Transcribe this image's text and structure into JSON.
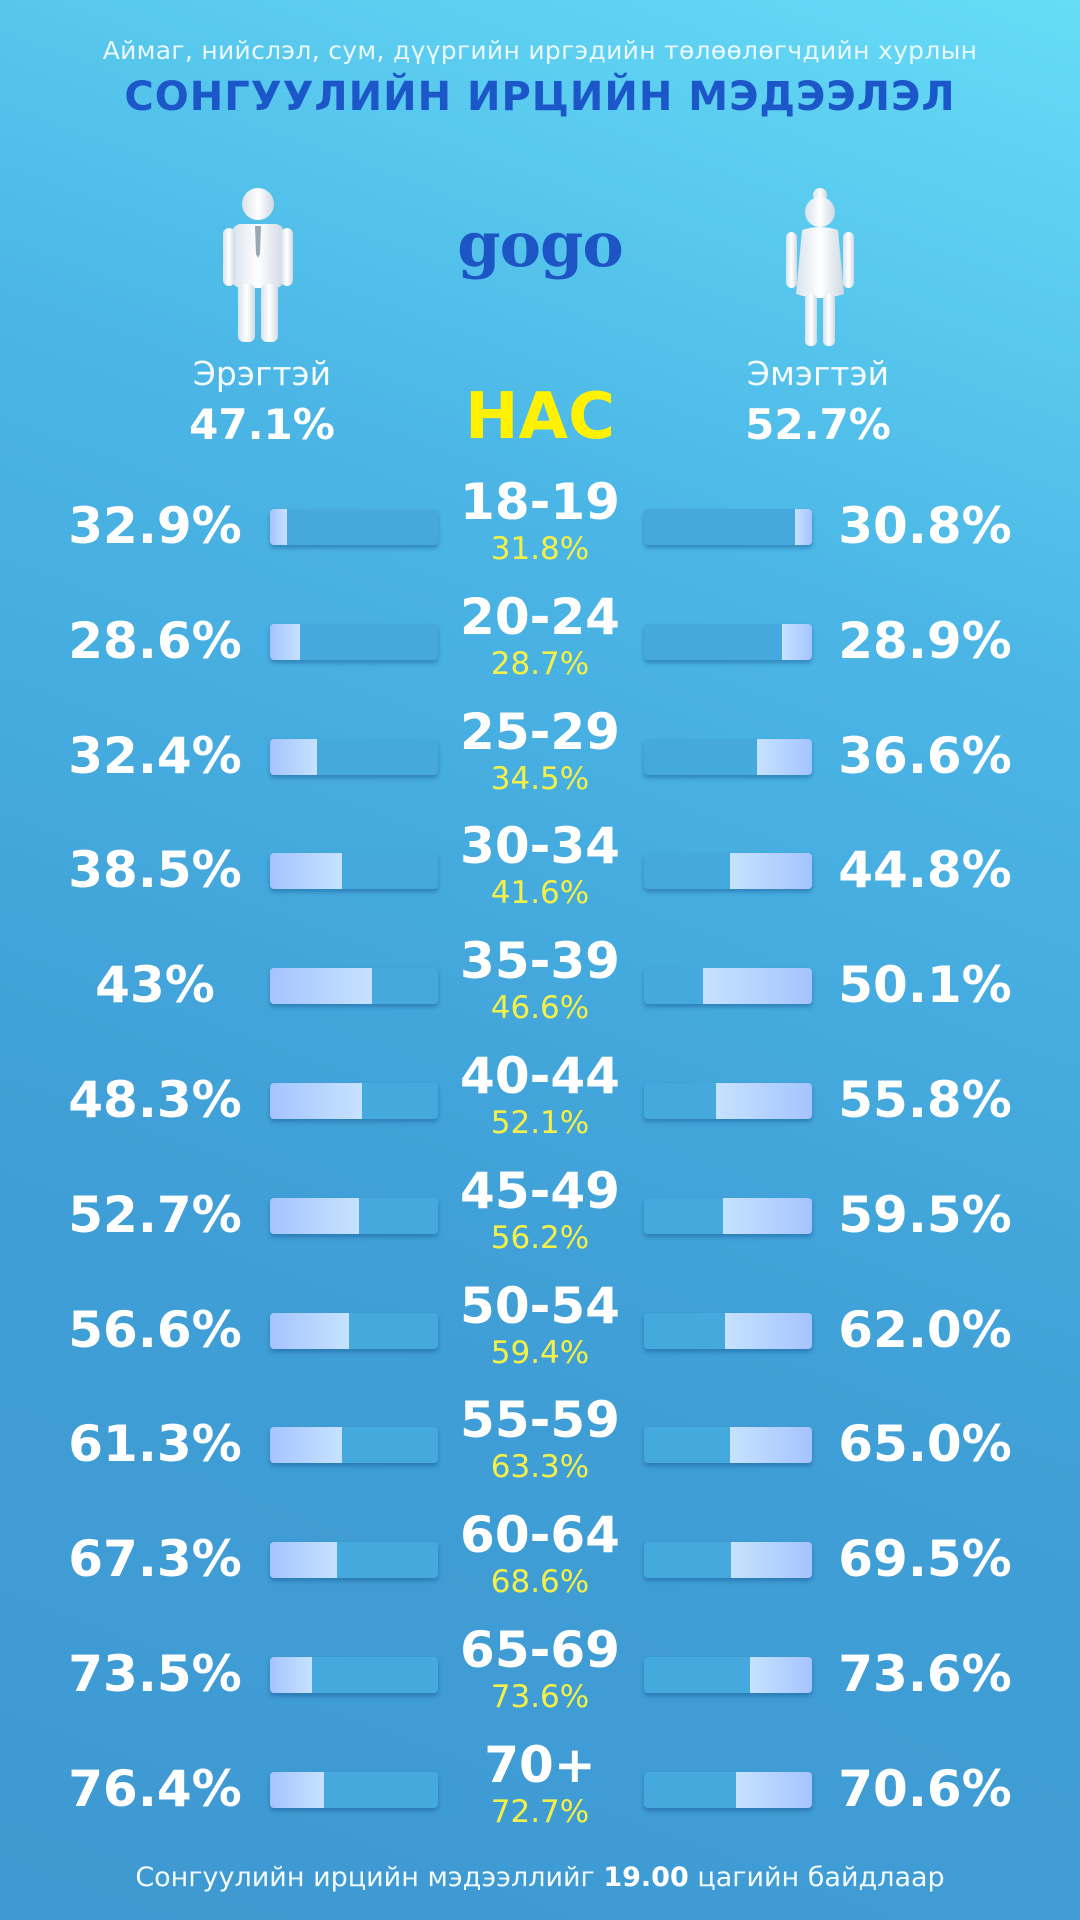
{
  "header": {
    "subtitle": "Аймаг, нийслэл, сум, дүүргийн иргэдийн төлөөлөгчдийн хурлын",
    "title": "СОНГУУЛИЙН ИРЦИЙН МЭДЭЭЛЭЛ",
    "logo": "gogo"
  },
  "gender": {
    "male_label": "Эрэгтэй",
    "male_pct": "47.1%",
    "female_label": "Эмэгтэй",
    "female_pct": "52.7%"
  },
  "age_header": "НАС",
  "chart_data": {
    "type": "bar",
    "categories": [
      "18-19",
      "20-24",
      "25-29",
      "30-34",
      "35-39",
      "40-44",
      "45-49",
      "50-54",
      "55-59",
      "60-64",
      "65-69",
      "70+"
    ],
    "male_labels": [
      "32.9%",
      "28.6%",
      "32.4%",
      "38.5%",
      "43%",
      "48.3%",
      "52.7%",
      "56.6%",
      "61.3%",
      "67.3%",
      "73.5%",
      "76.4%"
    ],
    "male_values": [
      32.9,
      28.6,
      32.4,
      38.5,
      43,
      48.3,
      52.7,
      56.6,
      61.3,
      67.3,
      73.5,
      76.4
    ],
    "total_labels": [
      "31.8%",
      "28.7%",
      "34.5%",
      "41.6%",
      "46.6%",
      "52.1%",
      "56.2%",
      "59.4%",
      "63.3%",
      "68.6%",
      "73.6%",
      "72.7%"
    ],
    "female_labels": [
      "30.8%",
      "28.9%",
      "36.6%",
      "44.8%",
      "50.1%",
      "55.8%",
      "59.5%",
      "62.0%",
      "65.0%",
      "69.5%",
      "73.6%",
      "70.6%"
    ],
    "female_values": [
      30.8,
      28.9,
      36.6,
      44.8,
      50.1,
      55.8,
      59.5,
      62.0,
      65.0,
      69.5,
      73.6,
      70.6
    ],
    "male_bar_fill": [
      0.1,
      0.18,
      0.28,
      0.43,
      0.61,
      0.55,
      0.53,
      0.47,
      0.43,
      0.4,
      0.25,
      0.32
    ],
    "female_bar_fill": [
      0.1,
      0.18,
      0.33,
      0.49,
      0.65,
      0.57,
      0.53,
      0.52,
      0.49,
      0.48,
      0.37,
      0.45
    ]
  },
  "footer": {
    "prefix": "Сонгуулийн ирцийн мэдээллийг",
    "time": "19.00",
    "suffix": "цагийн байдлаар"
  },
  "colors": {
    "title": "#1c57c9",
    "age_header": "#fff200",
    "total": "#f4f04a",
    "bar_track": "#45a9dd",
    "bar_fill": "#a5c4ff"
  },
  "icons": {
    "male": "man-figure-icon",
    "female": "woman-figure-icon"
  }
}
